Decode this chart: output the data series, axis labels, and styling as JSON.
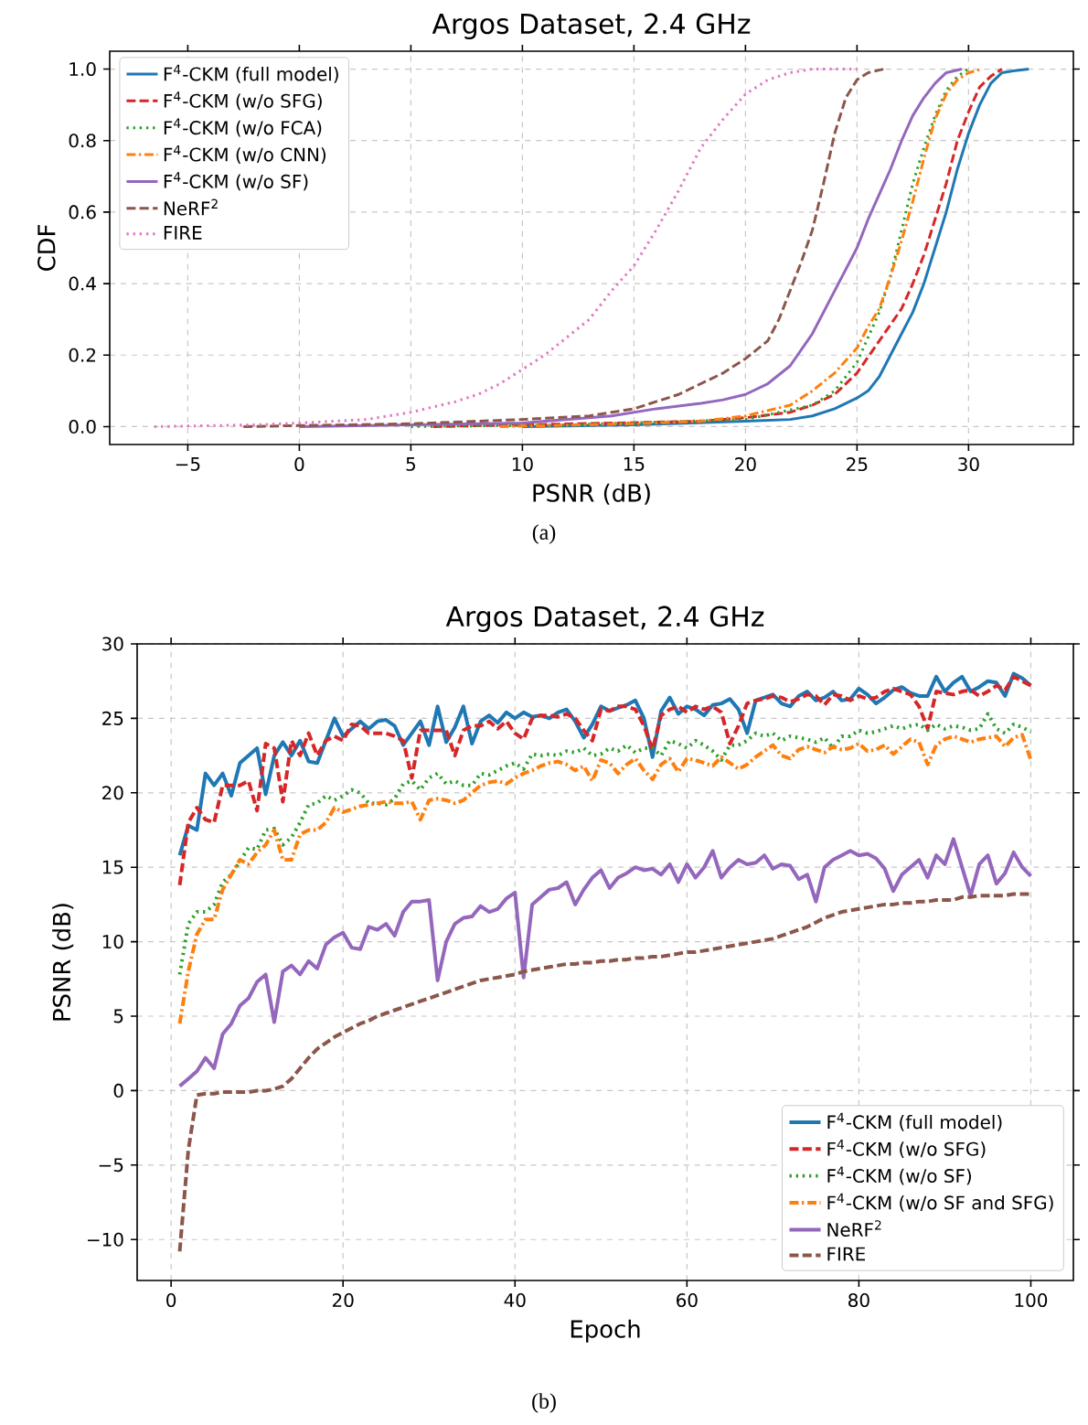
{
  "chart_data": [
    {
      "type": "line",
      "title": "Argos Dataset, 2.4 GHz",
      "xlabel": "PSNR (dB)",
      "ylabel": "CDF",
      "xlim": [
        -8.5,
        34.7
      ],
      "ylim": [
        -0.05,
        1.05
      ],
      "xticks": [
        {
          "value": -5,
          "label": "−5"
        },
        0,
        5,
        10,
        15,
        20,
        25,
        30
      ],
      "yticks": [
        {
          "value": 0,
          "label": "0.0"
        },
        {
          "value": 0.2,
          "label": "0.2"
        },
        {
          "value": 0.4,
          "label": "0.4"
        },
        {
          "value": 0.6,
          "label": "0.6"
        },
        {
          "value": 0.8,
          "label": "0.8"
        },
        {
          "value": 1,
          "label": "1.0"
        }
      ],
      "grid": true,
      "legend": "top left",
      "annotations": [
        "(a)"
      ],
      "series": [
        {
          "name": "F$^{4}$-CKM (full model)",
          "color": "#1f77b4",
          "line_style": "solid",
          "x": [
            10,
            15,
            20,
            22,
            23,
            24,
            25,
            25.5,
            26,
            26.5,
            27,
            27.5,
            28,
            28.5,
            29,
            29.5,
            30,
            30.5,
            31,
            31.5,
            32,
            32.7
          ],
          "values": [
            0,
            0.005,
            0.015,
            0.02,
            0.03,
            0.05,
            0.08,
            0.1,
            0.14,
            0.2,
            0.26,
            0.32,
            0.4,
            0.5,
            0.6,
            0.72,
            0.82,
            0.9,
            0.96,
            0.99,
            0.995,
            1.0
          ]
        },
        {
          "name": "F$^{4}$-CKM (w/o SFG)",
          "color": "#d62728",
          "line_style": "dashed",
          "x": [
            6,
            10,
            18,
            20,
            22,
            23,
            24,
            25,
            26,
            27,
            27.5,
            28,
            28.5,
            29,
            29.5,
            30,
            30.5,
            31,
            31.5
          ],
          "values": [
            0,
            0.005,
            0.015,
            0.025,
            0.04,
            0.06,
            0.09,
            0.15,
            0.24,
            0.33,
            0.4,
            0.48,
            0.58,
            0.68,
            0.8,
            0.88,
            0.95,
            0.98,
            1.0
          ]
        },
        {
          "name": "F$^{4}$-CKM (w/o FCA)",
          "color": "#2ca02c",
          "line_style": "dotted",
          "x": [
            5,
            12,
            20,
            23,
            24,
            25,
            25.5,
            26,
            26.5,
            27,
            27.5,
            28,
            28.5,
            29,
            29.5,
            30
          ],
          "values": [
            0,
            0.005,
            0.02,
            0.06,
            0.1,
            0.18,
            0.25,
            0.32,
            0.42,
            0.55,
            0.68,
            0.78,
            0.87,
            0.94,
            0.98,
            1.0
          ]
        },
        {
          "name": "F$^{4}$-CKM (w/o CNN)",
          "color": "#ff7f0e",
          "line_style": "dashdot",
          "x": [
            9,
            15,
            18,
            20,
            22,
            23,
            24,
            25,
            25.5,
            26,
            26.5,
            27,
            27.5,
            28,
            28.5,
            29,
            29.5,
            30,
            30.6
          ],
          "values": [
            0,
            0.008,
            0.015,
            0.03,
            0.06,
            0.1,
            0.15,
            0.22,
            0.28,
            0.33,
            0.42,
            0.52,
            0.63,
            0.75,
            0.86,
            0.93,
            0.97,
            0.99,
            1.0
          ]
        },
        {
          "name": "F$^{4}$-CKM (w/o SF)",
          "color": "#9467bd",
          "line_style": "solid",
          "x": [
            0,
            10,
            14,
            16,
            18,
            19,
            20,
            21,
            22,
            23,
            24,
            25,
            25.5,
            26,
            26.5,
            27,
            27.5,
            28,
            28.5,
            29,
            29.7
          ],
          "values": [
            0,
            0.01,
            0.03,
            0.05,
            0.065,
            0.075,
            0.09,
            0.12,
            0.17,
            0.26,
            0.38,
            0.5,
            0.58,
            0.65,
            0.72,
            0.8,
            0.87,
            0.92,
            0.96,
            0.99,
            1.0
          ]
        },
        {
          "name": "NeRF$^{2}$",
          "color": "#8c564b",
          "line_style": "dashed",
          "x": [
            -2.5,
            0,
            5,
            10,
            13,
            15,
            17,
            18,
            19,
            20,
            21,
            21.5,
            22,
            22.5,
            23,
            23.5,
            24,
            24.5,
            25,
            25.5,
            26.2
          ],
          "values": [
            0,
            0.003,
            0.008,
            0.02,
            0.03,
            0.05,
            0.09,
            0.12,
            0.15,
            0.19,
            0.24,
            0.3,
            0.38,
            0.46,
            0.55,
            0.68,
            0.82,
            0.92,
            0.97,
            0.99,
            1.0
          ]
        },
        {
          "name": "FIRE",
          "color": "#e377c2",
          "line_style": "dotted",
          "x": [
            -6.5,
            -2,
            0,
            3,
            5,
            7,
            8,
            9,
            10,
            11,
            12,
            13,
            14,
            15,
            16,
            17,
            18,
            19,
            20,
            21,
            22,
            23,
            25
          ],
          "values": [
            0,
            0.005,
            0.01,
            0.02,
            0.04,
            0.07,
            0.09,
            0.12,
            0.16,
            0.2,
            0.25,
            0.3,
            0.38,
            0.45,
            0.55,
            0.66,
            0.78,
            0.86,
            0.93,
            0.97,
            0.99,
            1.0,
            1.0
          ]
        }
      ]
    },
    {
      "type": "line",
      "title": "Argos Dataset, 2.4 GHz",
      "xlabel": "Epoch",
      "ylabel": "PSNR (dB)",
      "xlim": [
        -3.95,
        104.95
      ],
      "ylim": [
        -12.75,
        30
      ],
      "xticks": [
        0,
        20,
        40,
        60,
        80,
        100
      ],
      "yticks": [
        {
          "value": -10,
          "label": "−10"
        },
        {
          "value": -5,
          "label": "−5"
        },
        0,
        5,
        10,
        15,
        20,
        25,
        30
      ],
      "grid": true,
      "legend": "bottom right",
      "annotations": [
        "(b)"
      ],
      "x": [
        1,
        2,
        3,
        4,
        5,
        6,
        7,
        8,
        9,
        10,
        11,
        12,
        13,
        14,
        15,
        16,
        17,
        18,
        19,
        20,
        21,
        22,
        23,
        24,
        25,
        26,
        27,
        28,
        29,
        30,
        31,
        32,
        33,
        34,
        35,
        36,
        37,
        38,
        39,
        40,
        41,
        42,
        43,
        44,
        45,
        46,
        47,
        48,
        49,
        50,
        51,
        52,
        53,
        54,
        55,
        56,
        57,
        58,
        59,
        60,
        61,
        62,
        63,
        64,
        65,
        66,
        67,
        68,
        69,
        70,
        71,
        72,
        73,
        74,
        75,
        76,
        77,
        78,
        79,
        80,
        81,
        82,
        83,
        84,
        85,
        86,
        87,
        88,
        89,
        90,
        91,
        92,
        93,
        94,
        95,
        96,
        97,
        98,
        99,
        100
      ],
      "series": [
        {
          "name": "F$^{4}$-CKM (full model)",
          "color": "#1f77b4",
          "line_style": "solid",
          "values": [
            15.8,
            17.8,
            17.5,
            21.3,
            20.5,
            21.3,
            19.8,
            22,
            22.5,
            23,
            19.9,
            22.5,
            23.4,
            22.5,
            23.5,
            22.1,
            22,
            23.5,
            25,
            23.8,
            24.3,
            24.8,
            24.3,
            24.8,
            24.9,
            24.5,
            23.2,
            24,
            24.8,
            23.2,
            25.8,
            23.4,
            24.4,
            25.8,
            23.3,
            24.8,
            25.2,
            24.7,
            25.4,
            25,
            25.4,
            25.1,
            25.2,
            25,
            25.4,
            25.6,
            24.8,
            23.7,
            24.6,
            25.8,
            25.5,
            25.7,
            25.9,
            26.2,
            25,
            22.4,
            25.5,
            26.4,
            25.3,
            25.8,
            25.6,
            25.2,
            25.9,
            26,
            26.3,
            25.6,
            24,
            26.2,
            26.4,
            26.6,
            26,
            25.8,
            26.5,
            26.8,
            26.2,
            26.4,
            26.8,
            26.2,
            26.3,
            27,
            26.6,
            26,
            26.4,
            26.9,
            27.1,
            26.7,
            26.5,
            26.5,
            27.8,
            26.8,
            27.4,
            27.8,
            26.8,
            27.1,
            27.5,
            27.4,
            26.5,
            28,
            27.7,
            27.2
          ]
        },
        {
          "name": "F$^{4}$-CKM (w/o SFG)",
          "color": "#d62728",
          "line_style": "dashed",
          "values": [
            13.8,
            18,
            19,
            18.2,
            18,
            20.5,
            20.5,
            20.5,
            20.8,
            18.8,
            23.3,
            23,
            19.4,
            23.5,
            22.5,
            24,
            22.5,
            23.5,
            23.8,
            23.5,
            24.6,
            24.5,
            24,
            24,
            24,
            23.8,
            23.5,
            21,
            24.2,
            24.2,
            24.2,
            24.2,
            22.5,
            24.2,
            24.5,
            24.5,
            24.8,
            24.3,
            24.8,
            24,
            23.6,
            25,
            25.2,
            25.2,
            25.1,
            25.3,
            25,
            24.2,
            23.5,
            25.6,
            25.5,
            25.8,
            25.8,
            25.6,
            24.5,
            22.9,
            25.2,
            25.6,
            25.8,
            25.4,
            25.8,
            25.6,
            25.8,
            25.4,
            23.3,
            24.5,
            26,
            26.2,
            26.3,
            26.5,
            26.4,
            26.1,
            26.3,
            26.6,
            26.5,
            25.9,
            26.6,
            26.5,
            26.2,
            26.5,
            26.3,
            26.4,
            26.8,
            27,
            26.8,
            26.6,
            25.8,
            24.3,
            26.8,
            26.7,
            26.6,
            26.8,
            26.9,
            26.5,
            26.8,
            27.2,
            26.9,
            27.8,
            27.5,
            27.2
          ]
        },
        {
          "name": "F$^{4}$-CKM (w/o SF)",
          "color": "#2ca02c",
          "line_style": "dotted",
          "values": [
            7.8,
            11.2,
            12,
            12,
            12.5,
            14,
            14.5,
            15.4,
            16.3,
            16.2,
            17.5,
            17.6,
            16.5,
            17,
            18,
            19.2,
            19.3,
            19.8,
            19.5,
            19.8,
            20.2,
            20,
            19.3,
            19.3,
            19.2,
            19.6,
            20.6,
            20.8,
            20.2,
            21,
            21.3,
            20.6,
            20.8,
            20.5,
            20.5,
            21.3,
            21.2,
            21.5,
            21.8,
            22,
            21.6,
            22.6,
            22.5,
            22.6,
            22.5,
            22.8,
            22.7,
            23,
            22.5,
            22.6,
            23,
            22.8,
            23.2,
            22.7,
            23,
            23,
            22.5,
            23.5,
            23.3,
            23,
            23.5,
            23.2,
            22.8,
            22.2,
            23.2,
            23.2,
            23.5,
            24,
            23.8,
            24,
            23.5,
            23.8,
            23.7,
            23.6,
            23.4,
            23.7,
            23,
            23.8,
            23.8,
            24.2,
            24,
            24.1,
            24.3,
            24.5,
            24.3,
            24.5,
            24.6,
            24.2,
            24.6,
            24.3,
            24.5,
            24.4,
            24.2,
            24.3,
            25.3,
            24.3,
            24,
            24.6,
            24.4,
            24.1
          ]
        },
        {
          "name": "F$^{4}$-CKM (w/o SF and SFG)",
          "color": "#ff7f0e",
          "line_style": "dashdot",
          "values": [
            4.5,
            8,
            10.5,
            11.5,
            11.5,
            13.5,
            14.5,
            15.5,
            15.2,
            16,
            16.5,
            17.5,
            15.5,
            15.5,
            17.2,
            17.5,
            17.5,
            18,
            19,
            18.7,
            18.9,
            19.1,
            19.2,
            19.3,
            19.4,
            19.3,
            19.3,
            19.4,
            18.2,
            19.5,
            19.6,
            19.5,
            19.3,
            19.5,
            20,
            20.5,
            20.7,
            20.8,
            20.6,
            21,
            21.3,
            21.5,
            21.8,
            22,
            22.1,
            21.9,
            21.5,
            21.8,
            20.8,
            22.2,
            22,
            21.3,
            21.9,
            22.3,
            21.5,
            20.9,
            21.9,
            22.3,
            21.4,
            22.3,
            22.2,
            22,
            21.8,
            22.4,
            22,
            21.6,
            21.9,
            22.4,
            22.8,
            23.2,
            22.5,
            22.3,
            22.9,
            23.1,
            22.9,
            22.7,
            23.1,
            22.9,
            23,
            23.3,
            22.8,
            22.9,
            23.2,
            22.6,
            23.1,
            23.6,
            23.4,
            21.9,
            23.2,
            23.6,
            23.8,
            23.6,
            23.4,
            23.6,
            23.7,
            23.8,
            23.1,
            23.7,
            23.9,
            22.2
          ]
        },
        {
          "name": "NeRF$^{2}$",
          "color": "#9467bd",
          "line_style": "solid",
          "values": [
            0.3,
            0.8,
            1.3,
            2.2,
            1.5,
            3.8,
            4.5,
            5.7,
            6.2,
            7.3,
            7.8,
            4.6,
            8,
            8.4,
            7.8,
            8.7,
            8.2,
            9.8,
            10.3,
            10.6,
            9.6,
            9.5,
            11,
            10.8,
            11.2,
            10.4,
            12,
            12.7,
            12.7,
            12.8,
            7.4,
            10,
            11.2,
            11.6,
            11.7,
            12.4,
            12,
            12.2,
            12.9,
            13.3,
            7.6,
            12.5,
            13,
            13.5,
            13.6,
            14,
            12.5,
            13.5,
            14.3,
            14.8,
            13.6,
            14.3,
            14.6,
            15,
            14.8,
            14.9,
            14.5,
            15.2,
            14,
            15.2,
            14.3,
            15,
            16.1,
            14.3,
            15,
            15.5,
            15.2,
            15.3,
            15.8,
            14.9,
            15.2,
            15.1,
            14.2,
            14.5,
            12.7,
            15,
            15.5,
            15.8,
            16.1,
            15.8,
            15.9,
            15.6,
            14.9,
            13.4,
            14.5,
            15,
            15.5,
            14.3,
            15.8,
            15.2,
            16.9,
            15,
            13.1,
            15.2,
            15.8,
            13.9,
            14.6,
            16,
            15,
            14.4
          ]
        },
        {
          "name": "FIRE",
          "color": "#8c564b",
          "line_style": "dashed",
          "values": [
            -10.8,
            -4,
            -0.3,
            -0.2,
            -0.2,
            -0.1,
            -0.1,
            -0.1,
            -0.1,
            0,
            0,
            0.1,
            0.3,
            0.8,
            1.5,
            2.2,
            2.8,
            3.2,
            3.6,
            3.9,
            4.2,
            4.5,
            4.7,
            5,
            5.2,
            5.4,
            5.6,
            5.8,
            6,
            6.2,
            6.4,
            6.6,
            6.8,
            7,
            7.2,
            7.4,
            7.5,
            7.6,
            7.7,
            7.8,
            8,
            8.1,
            8.2,
            8.3,
            8.4,
            8.5,
            8.5,
            8.6,
            8.6,
            8.7,
            8.7,
            8.8,
            8.8,
            8.9,
            8.9,
            9,
            9,
            9.1,
            9.2,
            9.3,
            9.3,
            9.4,
            9.5,
            9.6,
            9.7,
            9.8,
            9.9,
            10,
            10.1,
            10.2,
            10.4,
            10.6,
            10.8,
            11,
            11.3,
            11.6,
            11.8,
            12,
            12.1,
            12.2,
            12.3,
            12.4,
            12.5,
            12.5,
            12.6,
            12.6,
            12.7,
            12.7,
            12.8,
            12.8,
            12.8,
            13,
            13,
            13.1,
            13.1,
            13.1,
            13.1,
            13.2,
            13.2,
            13.2
          ]
        }
      ]
    }
  ]
}
